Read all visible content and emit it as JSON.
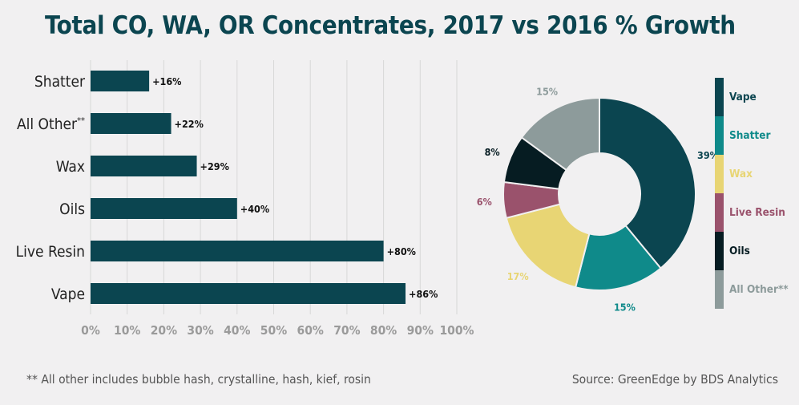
{
  "title": "Total CO, WA, OR Concentrates, 2017 vs 2016 % Growth",
  "footnote": "** All other includes bubble hash, crystalline, hash, kief, rosin",
  "source": "Source: GreenEdge by BDS Analytics",
  "colors": {
    "bar": "#0b4550",
    "grid": "#d8d8d8",
    "axis_text": "#9a9a9a",
    "vape": "#0b4550",
    "shatter": "#0f8a8a",
    "wax": "#e8d574",
    "live_resin": "#9a526c",
    "oils": "#061c22",
    "all_other": "#8d9b9b"
  },
  "chart_data": [
    {
      "type": "bar",
      "orientation": "horizontal",
      "categories": [
        "Shatter",
        "All Other",
        "Wax",
        "Oils",
        "Live Resin",
        "Vape"
      ],
      "category_suffix": [
        "",
        "**",
        "",
        "",
        "",
        ""
      ],
      "values": [
        16,
        22,
        29,
        40,
        80,
        86
      ],
      "data_labels": [
        "+16%",
        "+22%",
        "+29%",
        "+40%",
        "+80%",
        "+86%"
      ],
      "xlim": [
        0,
        100
      ],
      "xticks": [
        "0%",
        "10%",
        "20%",
        "30%",
        "40%",
        "50%",
        "60%",
        "70%",
        "80%",
        "90%",
        "100%"
      ],
      "grid": true
    },
    {
      "type": "pie",
      "donut": true,
      "slices": [
        {
          "name": "Vape",
          "value": 39,
          "label": "39%",
          "color_key": "vape"
        },
        {
          "name": "Shatter",
          "value": 15,
          "label": "15%",
          "color_key": "shatter"
        },
        {
          "name": "Wax",
          "value": 17,
          "label": "17%",
          "color_key": "wax"
        },
        {
          "name": "Live Resin",
          "value": 6,
          "label": "6%",
          "color_key": "live_resin"
        },
        {
          "name": "Oils",
          "value": 8,
          "label": "8%",
          "color_key": "oils"
        },
        {
          "name": "All Other",
          "value": 15,
          "label": "15%",
          "color_key": "all_other"
        }
      ],
      "legend": {
        "placement": "right",
        "items": [
          {
            "label": "Vape",
            "color_key": "vape"
          },
          {
            "label": "Shatter",
            "color_key": "shatter"
          },
          {
            "label": "Wax",
            "color_key": "wax"
          },
          {
            "label": "Live Resin",
            "color_key": "live_resin"
          },
          {
            "label": "Oils",
            "color_key": "oils"
          },
          {
            "label": "All Other**",
            "color_key": "all_other"
          }
        ]
      }
    }
  ]
}
